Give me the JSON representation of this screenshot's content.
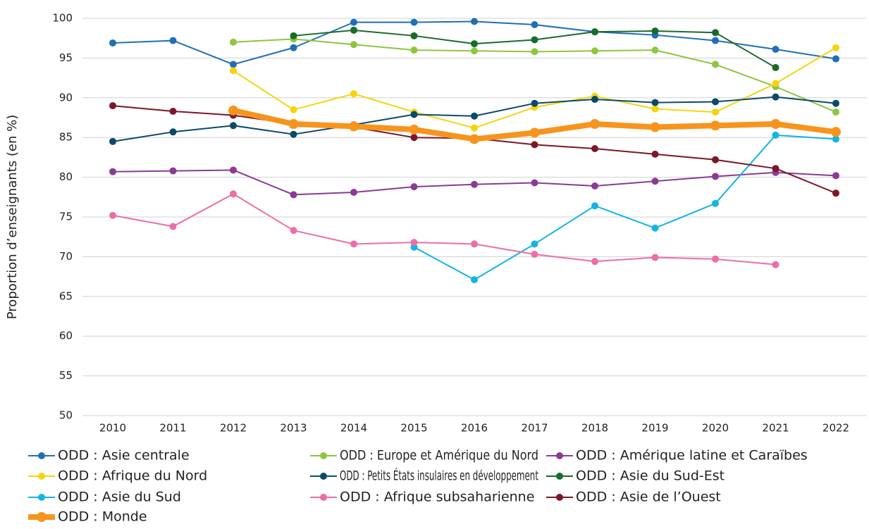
{
  "chart_data": {
    "type": "line",
    "y_label": "Proportion d’enseignants (en %)",
    "categories": [
      "2010",
      "2011",
      "2012",
      "2013",
      "2014",
      "2015",
      "2016",
      "2017",
      "2018",
      "2019",
      "2020",
      "2021",
      "2022"
    ],
    "ylim": [
      50,
      100
    ],
    "yticks": [
      50,
      55,
      60,
      65,
      70,
      75,
      80,
      85,
      90,
      95,
      100
    ],
    "grid": true,
    "legend": "bottom",
    "series": [
      {
        "name": "ODD : Asie centrale",
        "color": "#1f6fb5",
        "values": [
          96.9,
          97.2,
          94.2,
          96.3,
          99.5,
          99.5,
          99.6,
          99.2,
          98.3,
          97.9,
          97.2,
          96.1,
          94.9
        ]
      },
      {
        "name": "ODD : Europe et Amérique du Nord",
        "color": "#8dc63f",
        "values": [
          null,
          null,
          97.0,
          97.4,
          96.7,
          96.0,
          95.9,
          95.8,
          95.9,
          96.0,
          94.2,
          91.4,
          88.2
        ]
      },
      {
        "name": "ODD : Amérique latine et Caraïbes",
        "color": "#8b3a96",
        "values": [
          80.7,
          80.8,
          80.9,
          77.8,
          78.1,
          78.8,
          79.1,
          79.3,
          78.9,
          79.5,
          80.1,
          80.6,
          80.2
        ]
      },
      {
        "name": "ODD : Afrique du Nord",
        "color": "#f5d40f",
        "values": [
          null,
          null,
          93.4,
          88.5,
          90.5,
          88.2,
          86.2,
          88.8,
          90.2,
          88.6,
          88.2,
          91.8,
          96.3
        ]
      },
      {
        "name": "ODD : Petits États insulaires en développement",
        "color": "#0b4a68",
        "values": [
          84.5,
          85.7,
          86.5,
          85.4,
          86.6,
          87.9,
          87.7,
          89.3,
          89.8,
          89.4,
          89.5,
          90.1,
          89.3
        ]
      },
      {
        "name": "ODD : Asie du Sud-Est",
        "color": "#1a6b2a",
        "values": [
          null,
          null,
          null,
          97.8,
          98.5,
          97.8,
          96.8,
          97.3,
          98.3,
          98.4,
          98.2,
          93.8,
          null
        ]
      },
      {
        "name": "ODD : Asie du Sud",
        "color": "#13b4e6",
        "values": [
          null,
          null,
          null,
          null,
          null,
          71.2,
          67.1,
          71.6,
          76.4,
          73.6,
          76.7,
          85.3,
          84.8
        ]
      },
      {
        "name": "ODD : Afrique subsaharienne",
        "color": "#ea6fa9",
        "values": [
          75.2,
          73.8,
          77.9,
          73.3,
          71.6,
          71.8,
          71.6,
          70.3,
          69.4,
          69.9,
          69.7,
          69.0,
          null
        ]
      },
      {
        "name": "ODD : Asie de l’Ouest",
        "color": "#7b1728",
        "values": [
          89.0,
          88.3,
          87.8,
          86.7,
          86.3,
          85.0,
          84.9,
          84.1,
          83.6,
          82.9,
          82.2,
          81.1,
          78.0
        ]
      },
      {
        "name": "ODD : Monde",
        "color": "#f7941d",
        "width": 8,
        "values": [
          null,
          null,
          88.4,
          86.7,
          86.4,
          86.0,
          84.8,
          85.6,
          86.7,
          86.3,
          86.5,
          86.7,
          85.7
        ]
      }
    ]
  }
}
